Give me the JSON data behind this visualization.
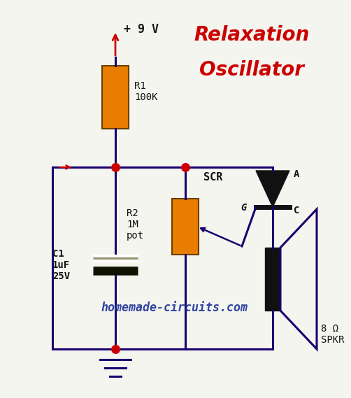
{
  "title1": "Relaxation",
  "title2": "Oscillator",
  "title_color": "#cc0000",
  "title_fontsize": 20,
  "bg_color": "#f5f5f0",
  "wire_color": "#1a006e",
  "wire_lw": 2.2,
  "dot_color": "#cc0000",
  "dot_size": 70,
  "resistor_color": "#e87d00",
  "vcc_label": "+ 9 V",
  "watermark": "homemade-circuits.com",
  "watermark_color": "#1a3399",
  "spkr_label": "8 Ω\nSPKR"
}
